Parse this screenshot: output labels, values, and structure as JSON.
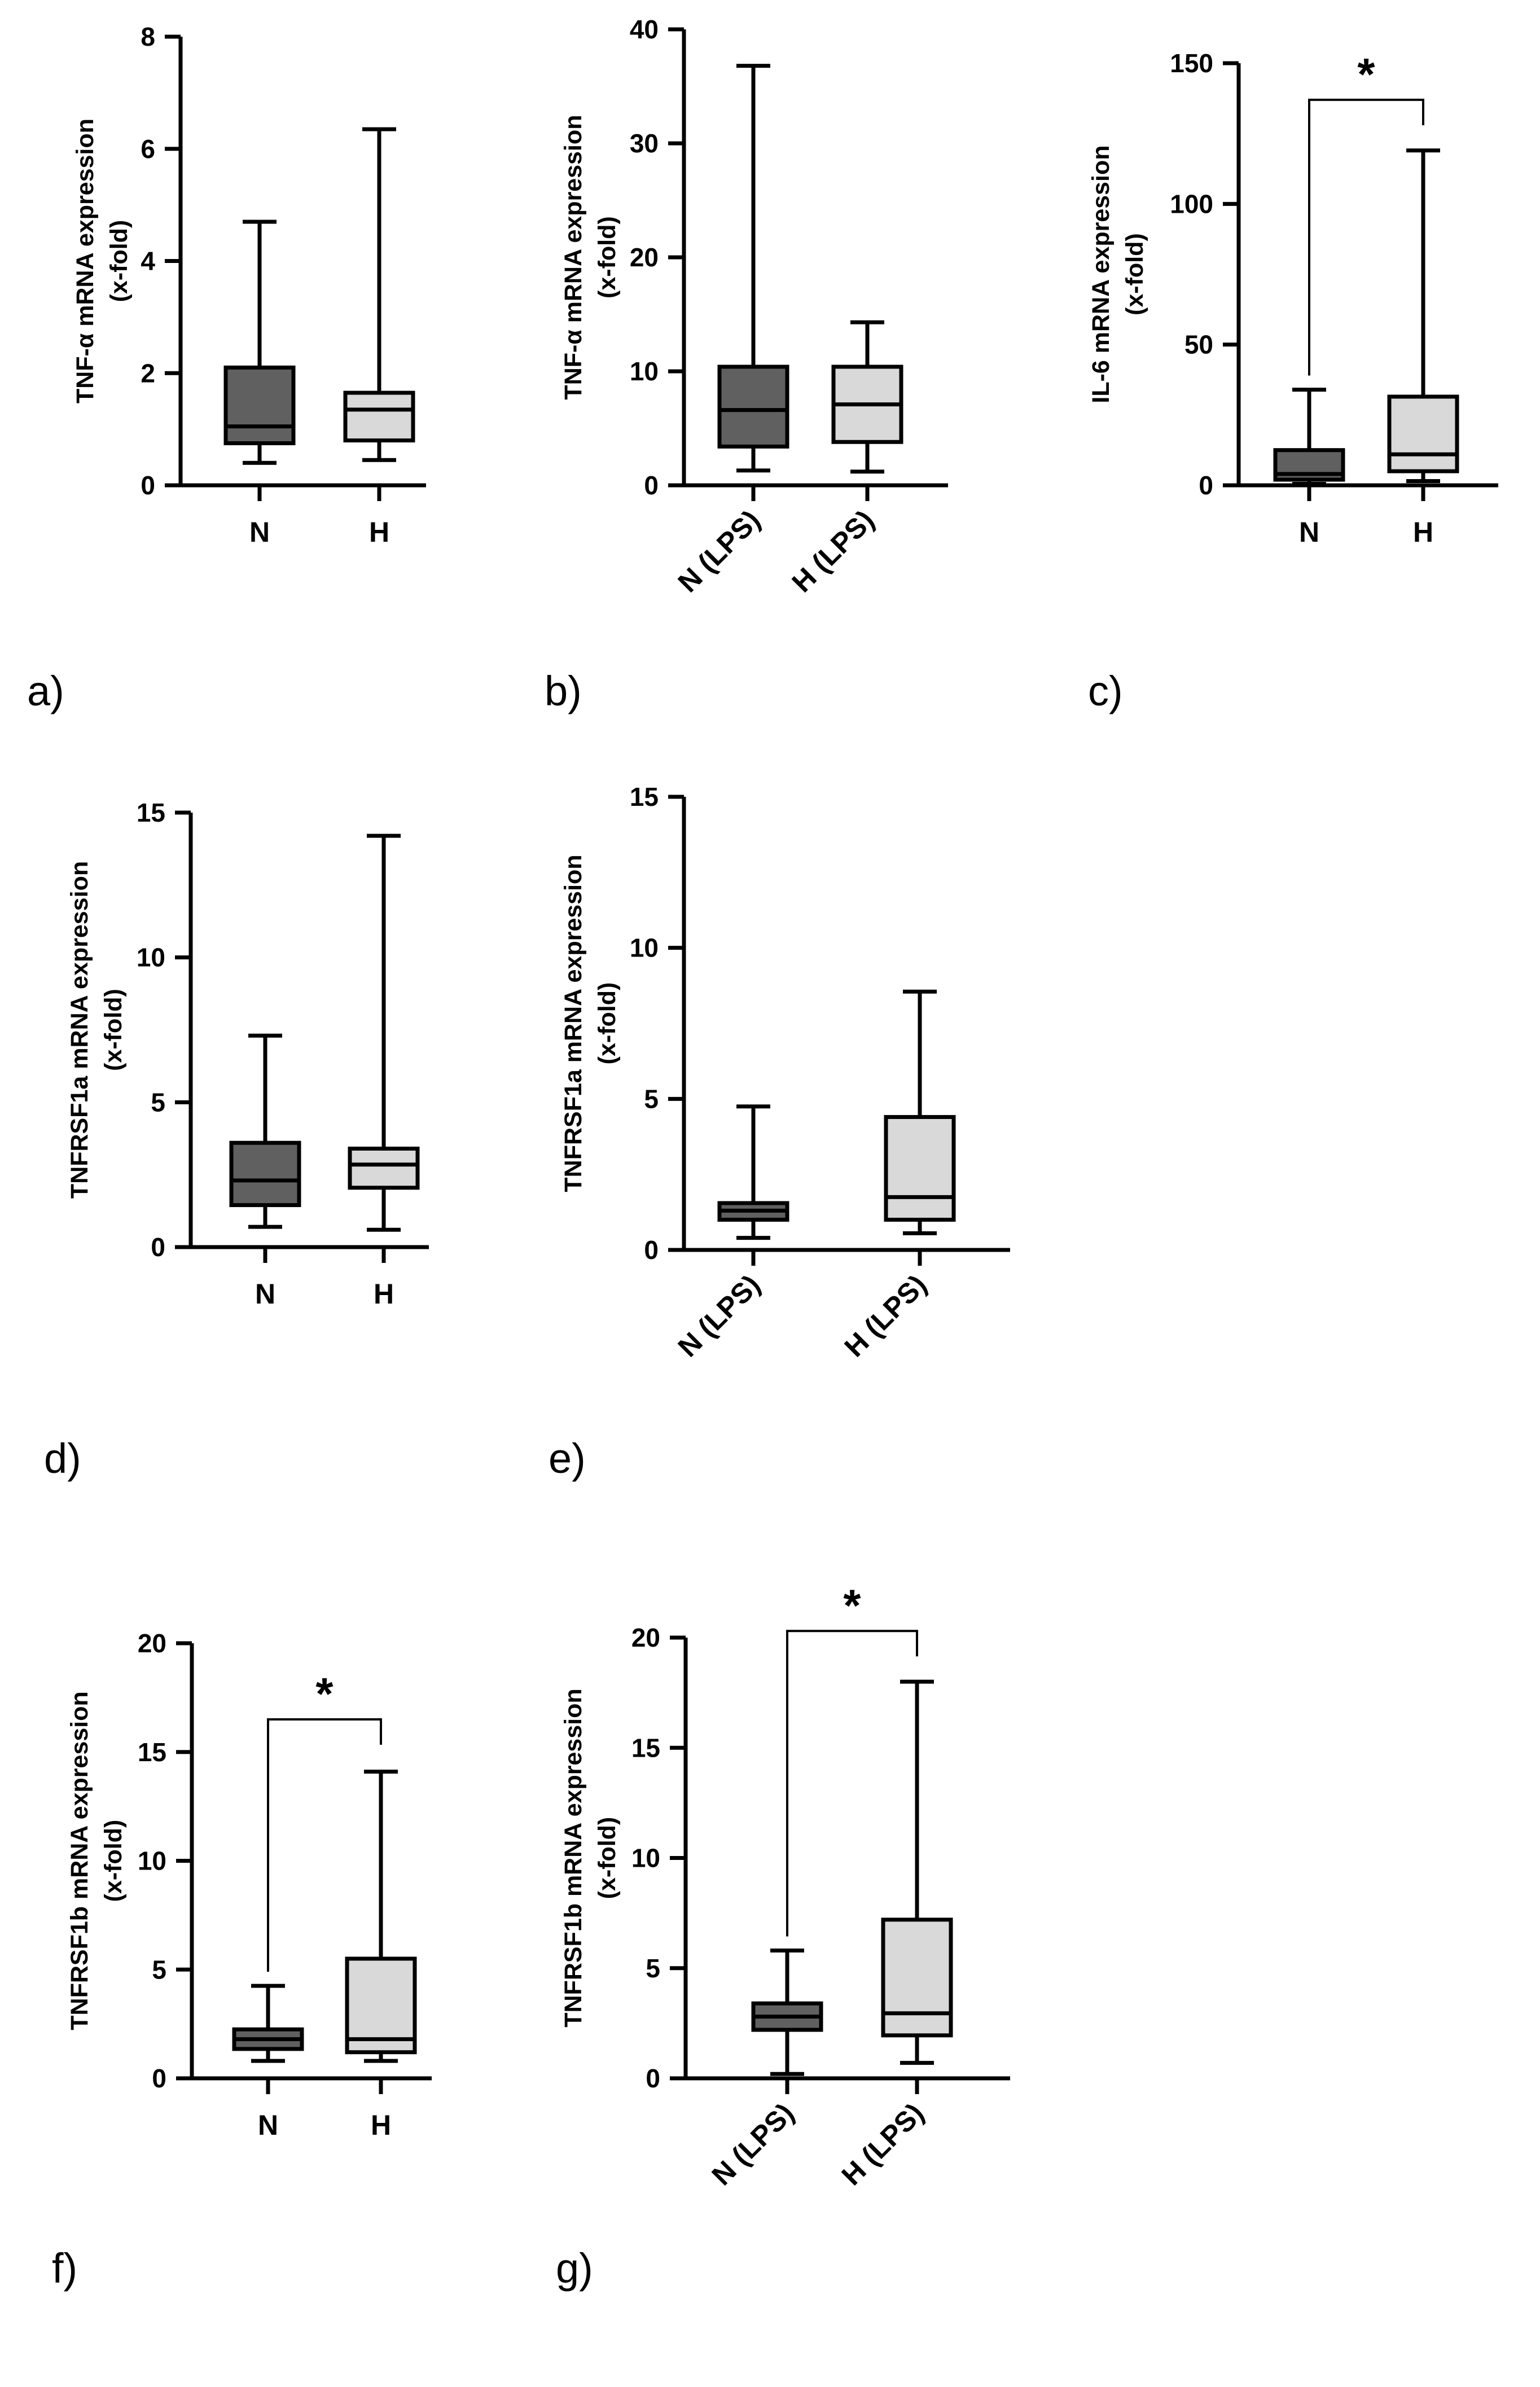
{
  "figure": {
    "colors": {
      "N": "#606060",
      "H": "#d9d9d9",
      "line": "#000000"
    },
    "significance_marker": "*"
  },
  "chart_data": [
    {
      "panel": "a)",
      "type": "boxplot",
      "ylabel": [
        "TNF-α mRNA expression",
        "(x-fold)"
      ],
      "ylim": [
        0,
        8
      ],
      "yticks": [
        0,
        2,
        4,
        6,
        8
      ],
      "categories": [
        "N",
        "H"
      ],
      "rotated_categories": false,
      "boxes": [
        {
          "name": "N",
          "min": 0.4,
          "q1": 0.75,
          "median": 1.05,
          "q3": 2.1,
          "max": 4.7
        },
        {
          "name": "H",
          "min": 0.45,
          "q1": 0.8,
          "median": 1.35,
          "q3": 1.65,
          "max": 6.35
        }
      ],
      "significance": null
    },
    {
      "panel": "b)",
      "type": "boxplot",
      "ylabel": [
        "TNF-α mRNA expression",
        "(x-fold)"
      ],
      "ylim": [
        0,
        40
      ],
      "yticks": [
        0,
        10,
        20,
        30,
        40
      ],
      "categories": [
        "N (LPS)",
        "H (LPS)"
      ],
      "rotated_categories": true,
      "boxes": [
        {
          "name": "N (LPS)",
          "min": 1.3,
          "q1": 3.4,
          "median": 6.6,
          "q3": 10.4,
          "max": 36.8
        },
        {
          "name": "H (LPS)",
          "min": 1.2,
          "q1": 3.8,
          "median": 7.1,
          "q3": 10.4,
          "max": 14.3
        }
      ],
      "significance": null
    },
    {
      "panel": "c)",
      "type": "boxplot",
      "ylabel": [
        "IL-6 mRNA expression",
        "(x-fold)"
      ],
      "ylim": [
        0,
        150
      ],
      "yticks": [
        0,
        50,
        100,
        150
      ],
      "categories": [
        "N",
        "H"
      ],
      "rotated_categories": false,
      "boxes": [
        {
          "name": "N",
          "min": 0.5,
          "q1": 2,
          "median": 4,
          "q3": 12.5,
          "max": 34
        },
        {
          "name": "H",
          "min": 1.5,
          "q1": 5,
          "median": 11,
          "q3": 31.5,
          "max": 119
        }
      ],
      "significance": {
        "label": "*",
        "bracket_y": 137
      }
    },
    {
      "panel": "d)",
      "type": "boxplot",
      "ylabel": [
        "TNFRSF1a mRNA expression",
        "(x-fold)"
      ],
      "ylim": [
        0,
        15
      ],
      "yticks": [
        0,
        5,
        10,
        15
      ],
      "categories": [
        "N",
        "H"
      ],
      "rotated_categories": false,
      "boxes": [
        {
          "name": "N",
          "min": 0.7,
          "q1": 1.45,
          "median": 2.3,
          "q3": 3.6,
          "max": 7.3
        },
        {
          "name": "H",
          "min": 0.6,
          "q1": 2.05,
          "median": 2.85,
          "q3": 3.4,
          "max": 14.2
        }
      ],
      "significance": null
    },
    {
      "panel": "e)",
      "type": "boxplot",
      "ylabel": [
        "TNFRSF1a mRNA expression",
        "(x-fold)"
      ],
      "ylim": [
        0,
        15
      ],
      "yticks": [
        0,
        5,
        10,
        15
      ],
      "categories": [
        "N (LPS)",
        "H (LPS)"
      ],
      "rotated_categories": true,
      "boxes": [
        {
          "name": "N (LPS)",
          "min": 0.4,
          "q1": 1.0,
          "median": 1.3,
          "q3": 1.55,
          "max": 4.75
        },
        {
          "name": "H (LPS)",
          "min": 0.55,
          "q1": 1.0,
          "median": 1.75,
          "q3": 4.4,
          "max": 8.55
        }
      ],
      "significance": null
    },
    {
      "panel": "f)",
      "type": "boxplot",
      "ylabel": [
        "TNFRSF1b mRNA expression",
        "(x-fold)"
      ],
      "ylim": [
        0,
        20
      ],
      "yticks": [
        0,
        5,
        10,
        15,
        20
      ],
      "categories": [
        "N",
        "H"
      ],
      "rotated_categories": false,
      "boxes": [
        {
          "name": "N",
          "min": 0.8,
          "q1": 1.35,
          "median": 1.8,
          "q3": 2.25,
          "max": 4.25
        },
        {
          "name": "H",
          "min": 0.8,
          "q1": 1.2,
          "median": 1.8,
          "q3": 5.5,
          "max": 14.1
        }
      ],
      "significance": {
        "label": "*",
        "bracket_y": 16.5
      }
    },
    {
      "panel": "g)",
      "type": "boxplot",
      "ylabel": [
        "TNFRSF1b mRNA expression",
        "(x-fold)"
      ],
      "ylim": [
        0,
        20
      ],
      "yticks": [
        0,
        5,
        10,
        15,
        20
      ],
      "categories": [
        "N (LPS)",
        "H (LPS)"
      ],
      "rotated_categories": true,
      "boxes": [
        {
          "name": "N (LPS)",
          "min": 0.2,
          "q1": 2.2,
          "median": 2.8,
          "q3": 3.4,
          "max": 5.8
        },
        {
          "name": "H (LPS)",
          "min": 0.7,
          "q1": 1.95,
          "median": 2.95,
          "q3": 7.2,
          "max": 18.0
        }
      ],
      "significance": {
        "label": "*",
        "bracket_y": 20.3
      }
    }
  ]
}
